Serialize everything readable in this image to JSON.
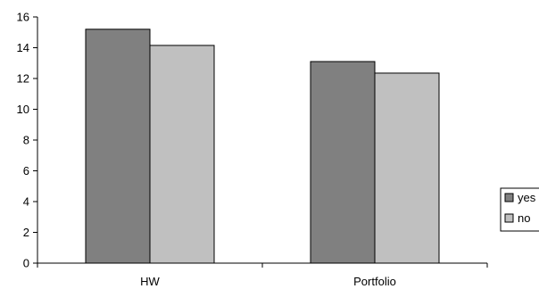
{
  "chart_data": {
    "type": "bar",
    "title": "",
    "xlabel": "",
    "ylabel": "",
    "ylim": [
      0,
      16
    ],
    "yticks": [
      0,
      2,
      4,
      6,
      8,
      10,
      12,
      14,
      16
    ],
    "categories": [
      "HW",
      "Portfolio"
    ],
    "series": [
      {
        "name": "yes",
        "values": [
          15.2,
          13.1
        ],
        "color": "#808080"
      },
      {
        "name": "no",
        "values": [
          14.15,
          12.35
        ],
        "color": "#c0c0c0"
      }
    ],
    "grid": false,
    "legend_position": "right"
  }
}
